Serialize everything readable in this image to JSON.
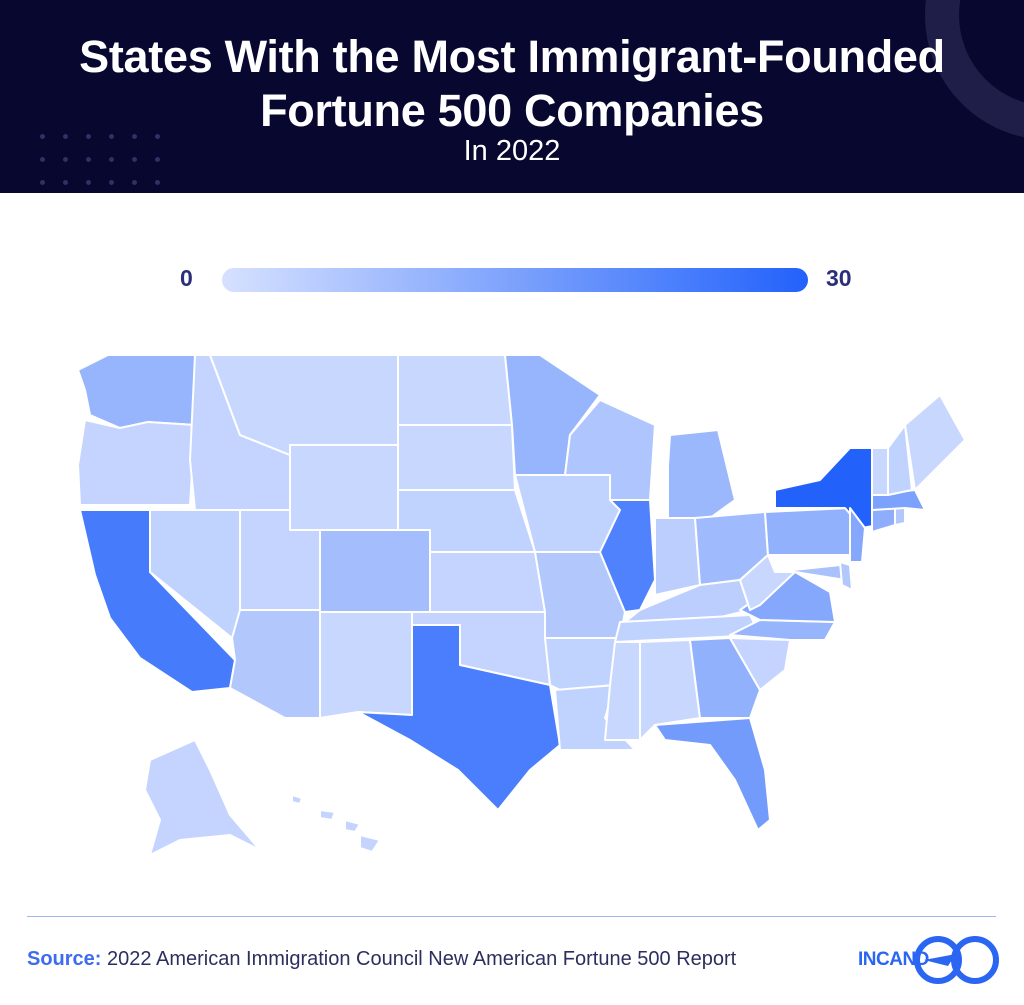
{
  "header": {
    "title_line1": "States With the Most Immigrant-Founded",
    "title_line2": "Fortune 500 Companies",
    "subtitle": "In 2022"
  },
  "legend": {
    "min_label": "0",
    "max_label": "30",
    "color_low": "#d6e1fe",
    "color_high": "#2262fb"
  },
  "colors": {
    "header_bg": "#070730",
    "map_border": "#ffffff",
    "source_label": "#3d6cf0"
  },
  "states": [
    {
      "id": "WA",
      "name": "Washington",
      "shade": 0.35
    },
    {
      "id": "OR",
      "name": "Oregon",
      "shade": 0.1
    },
    {
      "id": "CA",
      "name": "California",
      "shade": 0.8
    },
    {
      "id": "NV",
      "name": "Nevada",
      "shade": 0.12
    },
    {
      "id": "ID",
      "name": "Idaho",
      "shade": 0.1
    },
    {
      "id": "MT",
      "name": "Montana",
      "shade": 0.08
    },
    {
      "id": "WY",
      "name": "Wyoming",
      "shade": 0.08
    },
    {
      "id": "UT",
      "name": "Utah",
      "shade": 0.1
    },
    {
      "id": "AZ",
      "name": "Arizona",
      "shade": 0.2
    },
    {
      "id": "CO",
      "name": "Colorado",
      "shade": 0.28
    },
    {
      "id": "NM",
      "name": "New Mexico",
      "shade": 0.08
    },
    {
      "id": "ND",
      "name": "North Dakota",
      "shade": 0.08
    },
    {
      "id": "SD",
      "name": "South Dakota",
      "shade": 0.08
    },
    {
      "id": "NE",
      "name": "Nebraska",
      "shade": 0.12
    },
    {
      "id": "KS",
      "name": "Kansas",
      "shade": 0.1
    },
    {
      "id": "OK",
      "name": "Oklahoma",
      "shade": 0.1
    },
    {
      "id": "TX",
      "name": "Texas",
      "shade": 0.78
    },
    {
      "id": "MN",
      "name": "Minnesota",
      "shade": 0.35
    },
    {
      "id": "IA",
      "name": "Iowa",
      "shade": 0.12
    },
    {
      "id": "MO",
      "name": "Missouri",
      "shade": 0.2
    },
    {
      "id": "AR",
      "name": "Arkansas",
      "shade": 0.12
    },
    {
      "id": "LA",
      "name": "Louisiana",
      "shade": 0.12
    },
    {
      "id": "WI",
      "name": "Wisconsin",
      "shade": 0.22
    },
    {
      "id": "IL",
      "name": "Illinois",
      "shade": 0.75
    },
    {
      "id": "MI",
      "name": "Michigan",
      "shade": 0.32
    },
    {
      "id": "IN",
      "name": "Indiana",
      "shade": 0.15
    },
    {
      "id": "OH",
      "name": "Ohio",
      "shade": 0.3
    },
    {
      "id": "KY",
      "name": "Kentucky",
      "shade": 0.15
    },
    {
      "id": "TN",
      "name": "Tennessee",
      "shade": 0.12
    },
    {
      "id": "MS",
      "name": "Mississippi",
      "shade": 0.08
    },
    {
      "id": "AL",
      "name": "Alabama",
      "shade": 0.08
    },
    {
      "id": "GA",
      "name": "Georgia",
      "shade": 0.38
    },
    {
      "id": "FL",
      "name": "Florida",
      "shade": 0.55
    },
    {
      "id": "SC",
      "name": "South Carolina",
      "shade": 0.1
    },
    {
      "id": "NC",
      "name": "North Carolina",
      "shade": 0.35
    },
    {
      "id": "VA",
      "name": "Virginia",
      "shade": 0.45
    },
    {
      "id": "WV",
      "name": "West Virginia",
      "shade": 0.08
    },
    {
      "id": "PA",
      "name": "Pennsylvania",
      "shade": 0.38
    },
    {
      "id": "NY",
      "name": "New York",
      "shade": 1.0
    },
    {
      "id": "MD",
      "name": "Maryland",
      "shade": 0.25
    },
    {
      "id": "DE",
      "name": "Delaware",
      "shade": 0.2
    },
    {
      "id": "NJ",
      "name": "New Jersey",
      "shade": 0.45
    },
    {
      "id": "CT",
      "name": "Connecticut",
      "shade": 0.4
    },
    {
      "id": "RI",
      "name": "Rhode Island",
      "shade": 0.2
    },
    {
      "id": "MA",
      "name": "Massachusetts",
      "shade": 0.5
    },
    {
      "id": "VT",
      "name": "Vermont",
      "shade": 0.08
    },
    {
      "id": "NH",
      "name": "New Hampshire",
      "shade": 0.12
    },
    {
      "id": "ME",
      "name": "Maine",
      "shade": 0.08
    },
    {
      "id": "AK",
      "name": "Alaska",
      "shade": 0.1
    },
    {
      "id": "HI",
      "name": "Hawaii",
      "shade": 0.1
    }
  ],
  "footer": {
    "source_label": "Source:",
    "source_text": "2022 American Immigration Council New American Fortune 500 Report",
    "logo_text": "INCAND"
  }
}
